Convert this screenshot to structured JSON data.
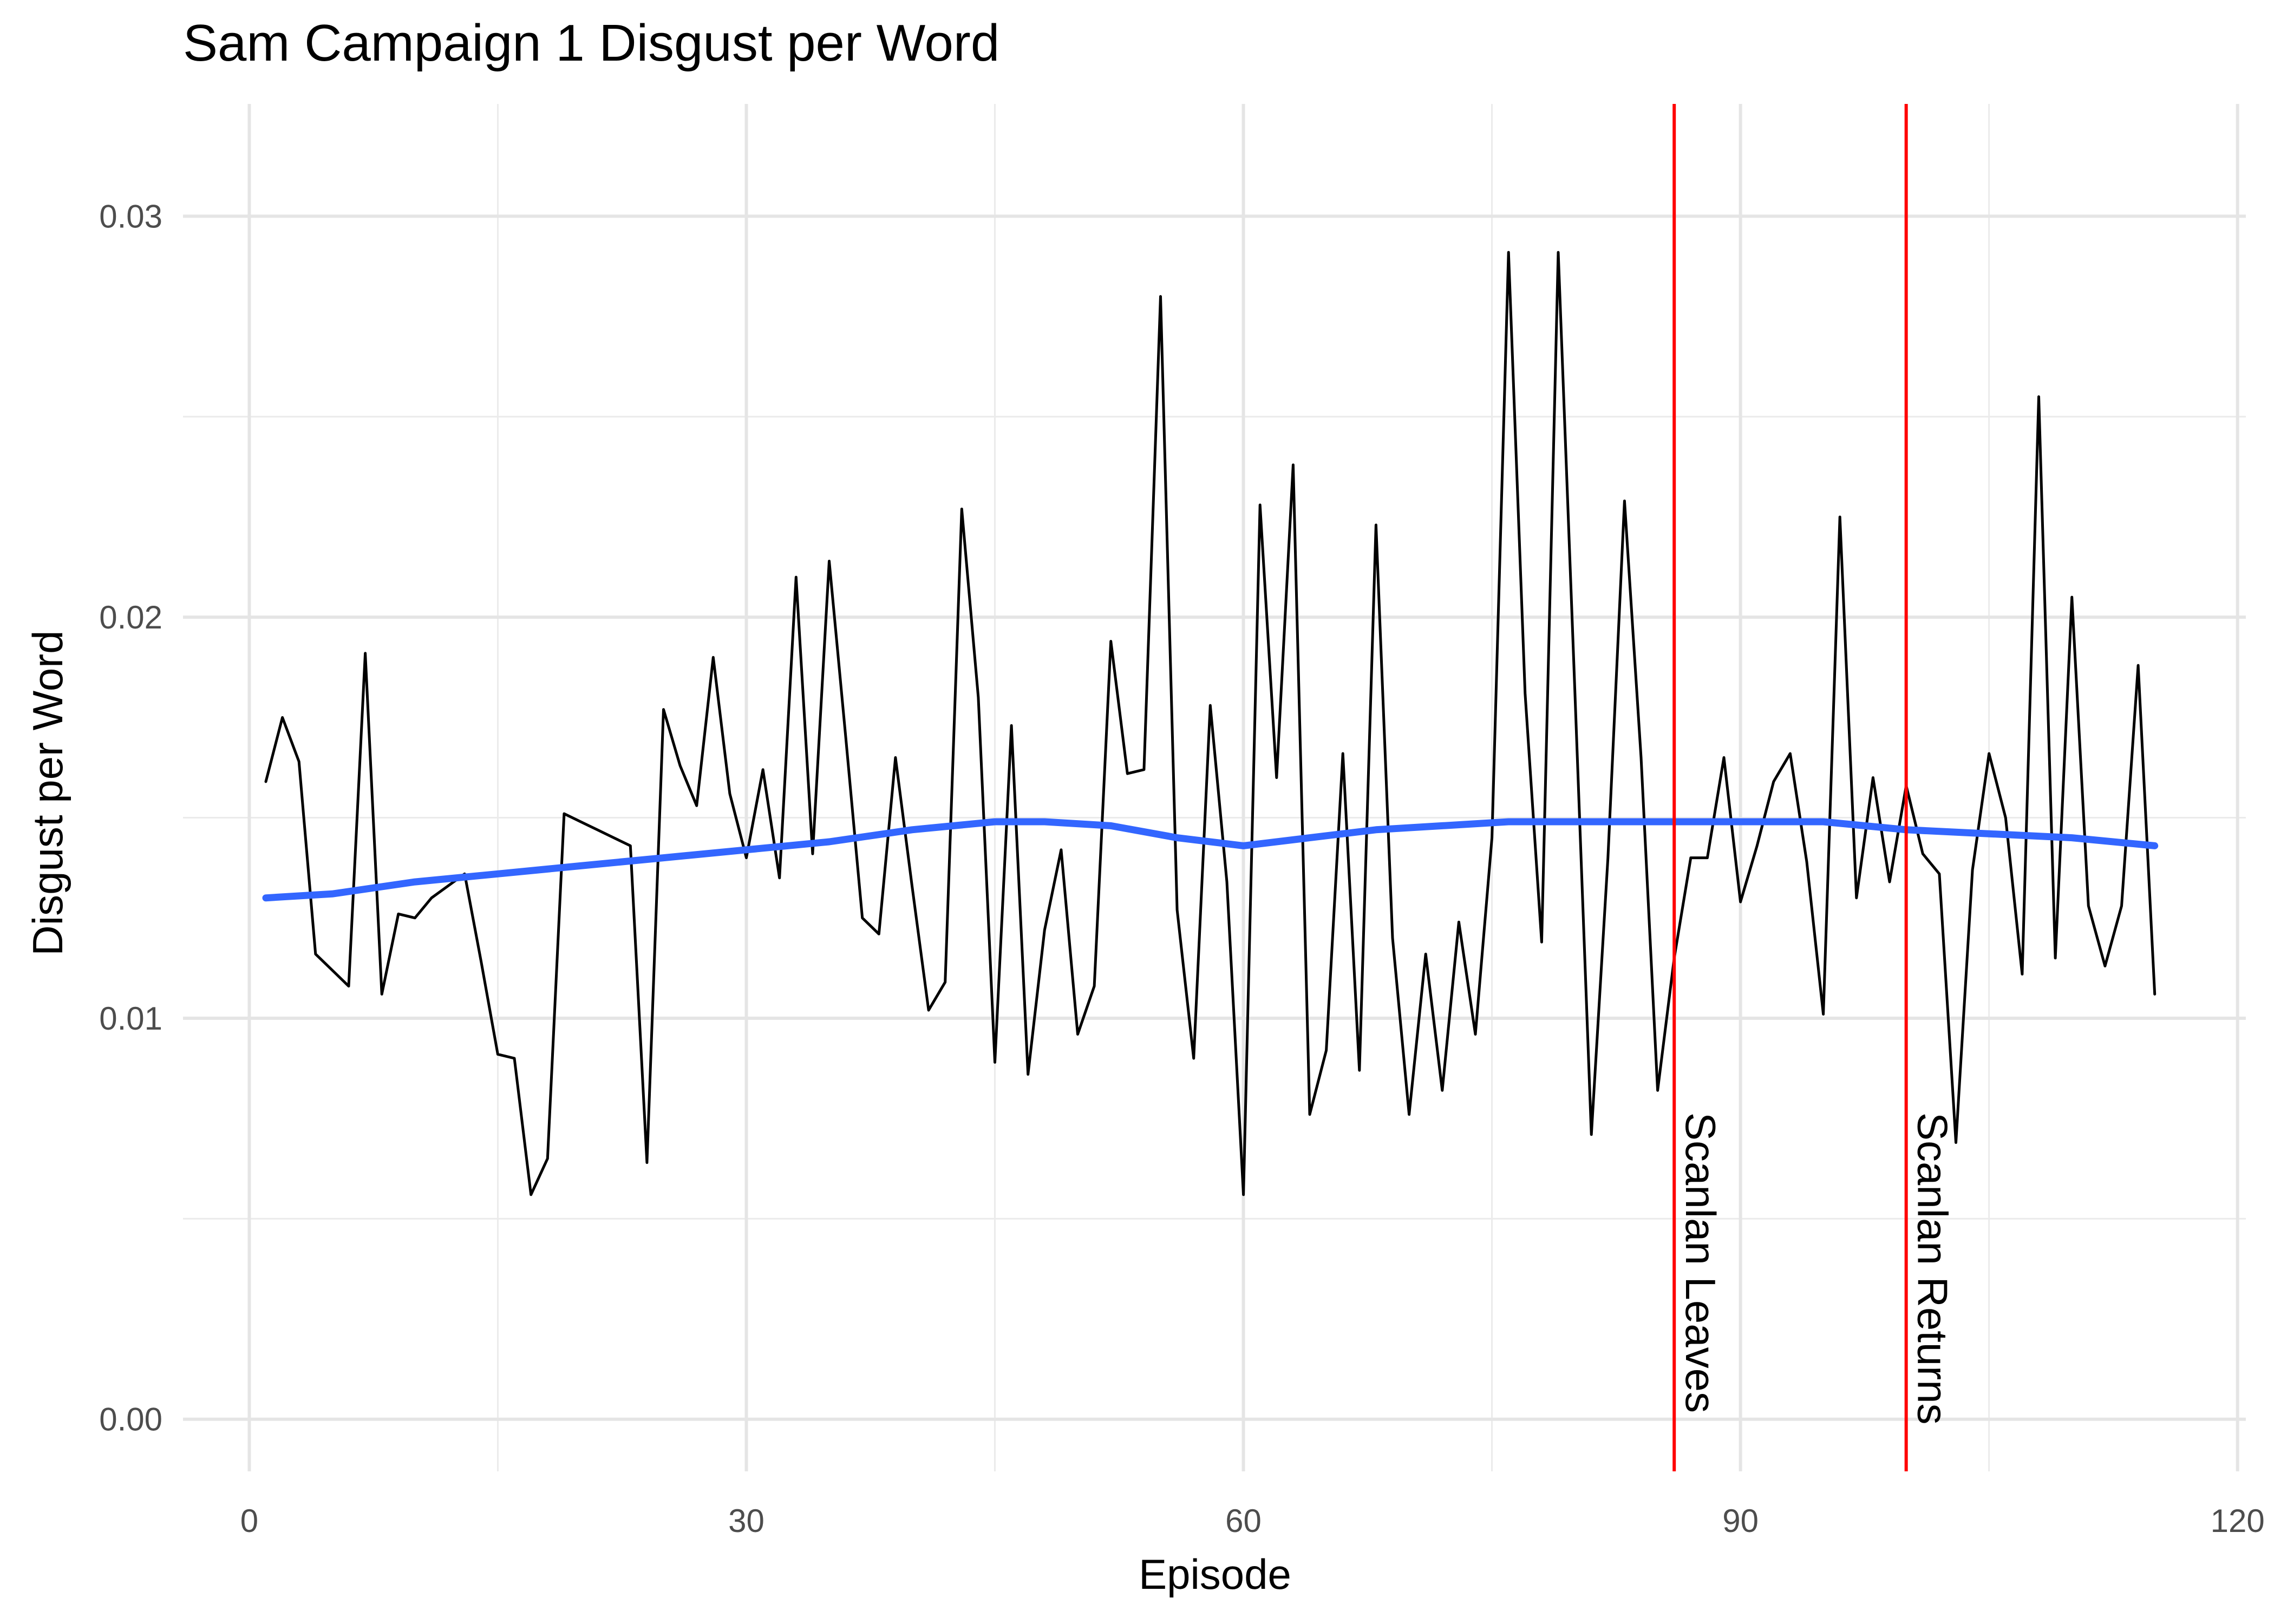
{
  "chart_data": {
    "type": "line",
    "title": "Sam Campaign 1 Disgust per Word",
    "xlabel": "Episode",
    "ylabel": "Disgust per Word",
    "xlim": [
      -4,
      120.5
    ],
    "ylim": [
      -0.0013,
      0.0328
    ],
    "x_ticks": [
      0,
      30,
      60,
      90,
      120
    ],
    "x_tick_labels": [
      "0",
      "30",
      "60",
      "90",
      "120"
    ],
    "y_ticks": [
      0,
      0.01,
      0.02,
      0.03
    ],
    "y_tick_labels": [
      "0.00",
      "0.01",
      "0.02",
      "0.03"
    ],
    "grid": true,
    "series": [
      {
        "color": "#000000",
        "x": [
          1,
          2,
          3,
          4,
          5,
          6,
          7,
          8,
          9,
          10,
          11,
          12,
          13,
          14,
          15,
          16,
          17,
          18,
          19,
          20,
          21,
          22,
          23,
          24,
          25,
          26,
          27,
          28,
          29,
          30,
          31,
          32,
          33,
          34,
          35,
          36,
          37,
          38,
          39,
          40,
          41,
          42,
          43,
          44,
          45,
          46,
          47,
          48,
          49,
          50,
          51,
          52,
          53,
          54,
          55,
          56,
          57,
          58,
          59,
          60,
          61,
          62,
          63,
          64,
          65,
          66,
          67,
          68,
          69,
          70,
          71,
          72,
          73,
          74,
          75,
          76,
          77,
          78,
          79,
          80,
          81,
          82,
          83,
          84,
          85,
          86,
          87,
          88,
          89,
          90,
          91,
          92,
          93,
          94,
          95,
          96,
          97,
          98,
          99,
          100,
          101,
          102,
          103,
          104,
          105,
          106,
          107,
          108,
          109,
          110,
          111,
          112,
          113,
          114,
          115
        ],
        "y": [
          0.0159,
          0.0175,
          0.0164,
          0.0116,
          0.0112,
          0.0108,
          0.0191,
          0.0106,
          0.0126,
          0.0125,
          0.013,
          0.0133,
          0.0136,
          0.0114,
          0.0091,
          0.009,
          0.0056,
          0.0065,
          0.0151,
          0.0149,
          0.0147,
          0.0145,
          0.0143,
          0.0064,
          0.0177,
          0.0163,
          0.0153,
          0.019,
          0.0156,
          0.014,
          0.0162,
          0.0135,
          0.021,
          0.0141,
          0.0214,
          0.017,
          0.0125,
          0.0121,
          0.0165,
          0.0133,
          0.0102,
          0.0109,
          0.0227,
          0.018,
          0.0089,
          0.0173,
          0.0086,
          0.0122,
          0.0142,
          0.0096,
          0.0108,
          0.0194,
          0.0161,
          0.0162,
          0.028,
          0.0127,
          0.009,
          0.0178,
          0.0134,
          0.0056,
          0.0228,
          0.016,
          0.0238,
          0.0076,
          0.0092,
          0.0166,
          0.0087,
          0.0223,
          0.012,
          0.0076,
          0.0116,
          0.0082,
          0.0124,
          0.0096,
          0.0145,
          0.0291,
          0.0181,
          0.0119,
          0.0291,
          0.0182,
          0.0071,
          0.014,
          0.0229,
          0.0165,
          0.0082,
          0.0115,
          0.014,
          0.014,
          0.0165,
          0.0129,
          0.0143,
          0.0159,
          0.0166,
          0.0139,
          0.0101,
          0.0225,
          0.013,
          0.016,
          0.0134,
          0.0158,
          0.0141,
          0.0136,
          0.0069,
          0.0137,
          0.0166,
          0.015,
          0.0111,
          0.0255,
          0.0115,
          0.0205,
          0.0128,
          0.0113,
          0.0128,
          0.0188,
          0.0106
        ]
      },
      {
        "color": "#3366FF",
        "x": [
          1,
          5,
          10,
          15,
          20,
          25,
          30,
          35,
          40,
          45,
          48,
          52,
          56,
          60,
          64,
          68,
          72,
          76,
          80,
          85,
          90,
          95,
          100,
          105,
          110,
          115
        ],
        "y": [
          0.013,
          0.0131,
          0.0134,
          0.0136,
          0.0138,
          0.014,
          0.0142,
          0.0144,
          0.0147,
          0.0149,
          0.0149,
          0.0148,
          0.0145,
          0.0143,
          0.0145,
          0.0147,
          0.0148,
          0.0149,
          0.0149,
          0.0149,
          0.0149,
          0.0149,
          0.0147,
          0.0146,
          0.0145,
          0.0143
        ]
      }
    ],
    "vlines": [
      {
        "x": 86,
        "label": "Scanlan Leaves",
        "color": "#FF0000"
      },
      {
        "x": 100,
        "label": "Scanlan Returns",
        "color": "#FF0000"
      }
    ]
  }
}
